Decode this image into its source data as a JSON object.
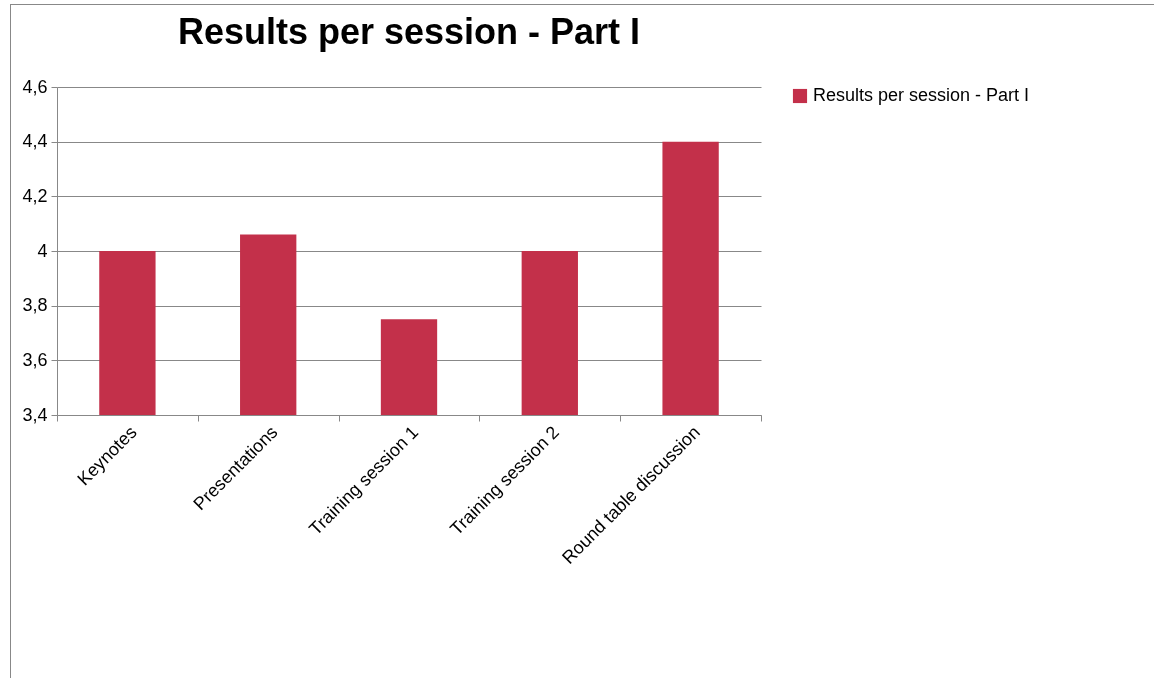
{
  "chart_data": {
    "type": "bar",
    "title": "Results per session - Part I",
    "categories": [
      "Keynotes",
      "Presentations",
      "Training session 1",
      "Training session 2",
      "Round table discussion"
    ],
    "series": [
      {
        "name": "Results per session - Part I",
        "color": "#c3304a",
        "values": [
          4.0,
          4.06,
          3.75,
          4.0,
          4.4
        ]
      }
    ],
    "ylim": [
      3.4,
      4.6
    ],
    "yticks": [
      {
        "value": 3.4,
        "label": "3,4"
      },
      {
        "value": 3.6,
        "label": "3,6"
      },
      {
        "value": 3.8,
        "label": "3,8"
      },
      4,
      {
        "value": 4.2,
        "label": "4,2"
      },
      {
        "value": 4.4,
        "label": "4,4"
      },
      {
        "value": 4.6,
        "label": "4,6"
      }
    ],
    "grid": "y",
    "legend": "right"
  }
}
